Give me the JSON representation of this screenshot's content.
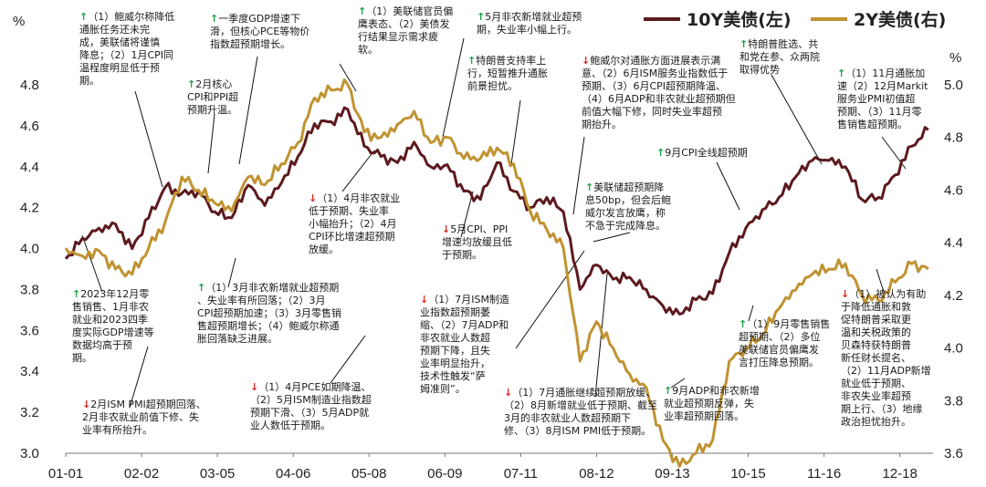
{
  "chart_data": {
    "type": "line",
    "legend_position": "top-right",
    "grid": false,
    "x_ticks": [
      "01-01",
      "02-02",
      "03-05",
      "04-06",
      "05-08",
      "06-09",
      "07-11",
      "08-12",
      "09-13",
      "10-15",
      "11-16",
      "12-18"
    ],
    "y_left": {
      "unit": "%",
      "range": [
        3.0,
        4.8
      ],
      "ticks": [
        "3.0",
        "3.2",
        "3.4",
        "3.6",
        "3.8",
        "4.0",
        "4.2",
        "4.4",
        "4.6",
        "4.8"
      ]
    },
    "y_right": {
      "unit": "%",
      "range": [
        3.6,
        5.0
      ],
      "ticks": [
        "3.6",
        "3.8",
        "4.0",
        "4.2",
        "4.4",
        "4.6",
        "4.8",
        "5.0"
      ]
    },
    "series": [
      {
        "name": "10Y美债(左)",
        "color": "#5c1a1e",
        "axis": "left",
        "x": [
          "01-01",
          "01-08",
          "01-15",
          "01-22",
          "01-29",
          "02-05",
          "02-12",
          "02-19",
          "02-26",
          "03-04",
          "03-11",
          "03-18",
          "03-25",
          "04-01",
          "04-08",
          "04-15",
          "04-22",
          "04-29",
          "05-06",
          "05-13",
          "05-20",
          "05-27",
          "06-03",
          "06-10",
          "06-17",
          "06-24",
          "07-01",
          "07-08",
          "07-15",
          "07-22",
          "07-29",
          "08-05",
          "08-12",
          "08-19",
          "08-26",
          "09-02",
          "09-09",
          "09-16",
          "09-23",
          "09-30",
          "10-07",
          "10-14",
          "10-21",
          "10-28",
          "11-04",
          "11-11",
          "11-18",
          "11-25",
          "12-02",
          "12-09",
          "12-16",
          "12-23",
          "12-30"
        ],
        "values": [
          3.95,
          4.05,
          4.1,
          4.12,
          4.0,
          4.15,
          4.3,
          4.27,
          4.28,
          4.18,
          4.15,
          4.31,
          4.21,
          4.32,
          4.45,
          4.61,
          4.62,
          4.68,
          4.5,
          4.45,
          4.42,
          4.52,
          4.4,
          4.41,
          4.28,
          4.24,
          4.42,
          4.28,
          4.2,
          4.25,
          4.18,
          3.8,
          3.92,
          3.85,
          3.86,
          3.8,
          3.72,
          3.68,
          3.75,
          3.78,
          3.98,
          4.1,
          4.19,
          4.25,
          4.35,
          4.43,
          4.43,
          4.4,
          4.24,
          4.25,
          4.36,
          4.5,
          4.58
        ]
      },
      {
        "name": "2Y美债(右)",
        "color": "#c09331",
        "axis": "right",
        "x": [
          "01-01",
          "01-08",
          "01-15",
          "01-22",
          "01-29",
          "02-05",
          "02-12",
          "02-19",
          "02-26",
          "03-04",
          "03-11",
          "03-18",
          "03-25",
          "04-01",
          "04-08",
          "04-15",
          "04-22",
          "04-29",
          "05-06",
          "05-13",
          "05-20",
          "05-27",
          "06-03",
          "06-10",
          "06-17",
          "06-24",
          "07-01",
          "07-08",
          "07-15",
          "07-22",
          "07-29",
          "08-05",
          "08-12",
          "08-19",
          "08-26",
          "09-02",
          "09-09",
          "09-16",
          "09-23",
          "09-30",
          "10-07",
          "10-14",
          "10-21",
          "10-28",
          "11-04",
          "11-11",
          "11-18",
          "11-25",
          "12-02",
          "12-09",
          "12-16",
          "12-23",
          "12-30"
        ],
        "values": [
          4.38,
          4.35,
          4.37,
          4.3,
          4.28,
          4.38,
          4.48,
          4.65,
          4.6,
          4.55,
          4.52,
          4.65,
          4.62,
          4.7,
          4.78,
          4.95,
          4.98,
          5.0,
          4.82,
          4.8,
          4.85,
          4.9,
          4.78,
          4.8,
          4.72,
          4.72,
          4.76,
          4.7,
          4.52,
          4.45,
          4.38,
          3.95,
          4.1,
          4.0,
          3.9,
          3.85,
          3.65,
          3.55,
          3.6,
          3.65,
          3.95,
          4.0,
          4.05,
          4.15,
          4.22,
          4.28,
          4.3,
          4.32,
          4.2,
          4.18,
          4.25,
          4.32,
          4.3
        ]
      }
    ]
  },
  "annotations": [
    {
      "arrow": "up",
      "text": "（1）鲍威尔称降低\n通胀任务还未完\n成，美联储将谨慎\n降息；（2）1月CPI同\n温程度明显低于预\n期。"
    },
    {
      "arrow": "up",
      "text": "一季度GDP增速下\n滑，但核心PCE等物价\n指数超预期增长。"
    },
    {
      "arrow": "up",
      "text": "（1）美联储官员偏\n鹰表态、（2）美债发\n行结果显示需求疲\n软。"
    },
    {
      "arrow": "up",
      "text": "5月非农新增就业超预\n期，失业率小幅上行。"
    },
    {
      "arrow": "up",
      "text": "2月核心\nCPI和PPI超\n预期升温。"
    },
    {
      "arrow": "up",
      "text": "特朗普支持率上\n行，短暂推升通胀\n前景担忧。"
    },
    {
      "arrow": "down",
      "text": "鲍威尔对通胀方面进展表示满\n意、（2）6月ISM服务业指数低于\n预期、（3）6月CPI超预期降温、\n（4）6月ADP和非农就业超预期但\n前值大幅下修，同时失业率超预\n期抬升。"
    },
    {
      "arrow": "up",
      "text": "特朗普胜选、共\n和党在参、众两院\n取得优势"
    },
    {
      "arrow": "up",
      "text": "（1）11月通胀加\n速（2）12月Markit\n服务业PMI初值超\n预期、（3）11月零\n售销售超预期。"
    },
    {
      "arrow": "up",
      "text": "9月CPI全线超预期"
    },
    {
      "arrow": "down",
      "text": "（1）4月非农就业\n低于预期、失业率\n小幅抬升；（2）4月\nCPI环比增速超预期\n放缓。"
    },
    {
      "arrow": "up",
      "text": "美联储超预期降\n息50bp，但会后鲍\n威尔发言放鹰，称\n不急于完成降息。"
    },
    {
      "arrow": "down",
      "text": "5月CPI、PPI\n增速均放缓且低\n于预期。"
    },
    {
      "arrow": "up",
      "text": "2023年12月零\n售销售、1月非农\n就业和2023四季\n度实际GDP增速等\n数据均高于预\n期。"
    },
    {
      "arrow": "up",
      "text": "（1）3月非农新增就业超预期\n、失业率有所回落；（2）3月\nCPI超预期加速；（3）3月零售销\n售超预期增长；（4）鲍威尔称通\n胀回落缺乏进展。"
    },
    {
      "arrow": "down",
      "text": "（1）7月ISM制造\n业指数超预期萎\n缩、（2）7月ADP和\n非农就业人数超\n预期下降，且失\n业率明显抬升，\n技术性触发“萨\n姆准则”。"
    },
    {
      "arrow": "up",
      "text": "（1）9月零售销售\n超预期、（2）多位\n美联储官员偏鹰发\n言打压降息预期。"
    },
    {
      "arrow": "down",
      "text": "（1）被认为有助\n于降低通胀和敦\n促特朗普采取更\n温和关税政策的\n贝森特获特朗普\n新任财长提名、\n（2）11月ADP新增\n就业低于预期、\n非农失业率超预\n期上行、（3）地缘\n政治担忧抬升。"
    },
    {
      "arrow": "down",
      "text": "（1）4月PCE如期降温、\n（2）5月ISM制造业指数超\n预期下滑、（3）5月ADP就\n业人数低于预期。"
    },
    {
      "arrow": "down",
      "text": "（1）7月通胀继续超预期放缓、\n（2）8月新增就业低于预期、截至\n3月的非农就业人数超预期下\n修、（3）8月ISM PMI低于预期。"
    },
    {
      "arrow": "up",
      "text": "9月ADP和非农新增\n就业超预期反弹，失\n业率超预期回落。"
    },
    {
      "arrow": "down",
      "text": "2月ISM PMI超预期回落、\n2月非农就业前值下修、失\n业率有所抬升。"
    }
  ]
}
